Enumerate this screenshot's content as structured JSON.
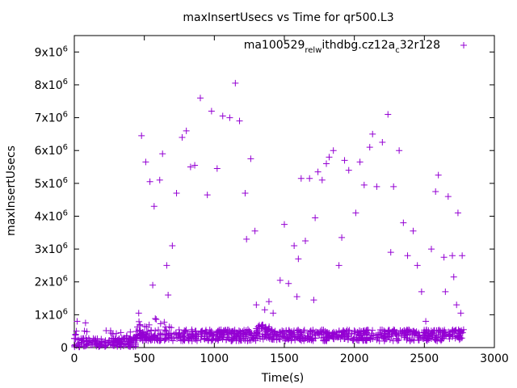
{
  "chart_data": {
    "type": "scatter",
    "title": "maxInsertUsecs vs Time for qr500.L3",
    "xlabel": "Time(s)",
    "ylabel": "maxInsertUsecs",
    "xlim": [
      0,
      3000
    ],
    "ylim": [
      0,
      9500000
    ],
    "x_ticks": [
      0,
      500,
      1000,
      1500,
      2000,
      2500,
      3000
    ],
    "y_ticks": [
      {
        "value": 0,
        "base": "0",
        "exp": ""
      },
      {
        "value": 1000000,
        "base": "1x10",
        "exp": "6"
      },
      {
        "value": 2000000,
        "base": "2x10",
        "exp": "6"
      },
      {
        "value": 3000000,
        "base": "3x10",
        "exp": "6"
      },
      {
        "value": 4000000,
        "base": "4x10",
        "exp": "6"
      },
      {
        "value": 5000000,
        "base": "5x10",
        "exp": "6"
      },
      {
        "value": 6000000,
        "base": "6x10",
        "exp": "6"
      },
      {
        "value": 7000000,
        "base": "7x10",
        "exp": "6"
      },
      {
        "value": 8000000,
        "base": "8x10",
        "exp": "6"
      },
      {
        "value": 9000000,
        "base": "9x10",
        "exp": "6"
      }
    ],
    "grid": false,
    "legend_position": "top-right",
    "series": [
      {
        "name": "ma100529_rel_withdbg.cz12a_c32r128",
        "name_parts": [
          {
            "text": "ma100529",
            "sub": ""
          },
          {
            "text": "",
            "sub": "rel"
          },
          {
            "text": "",
            "sub": "w"
          },
          {
            "text": "ithdbg.cz12a",
            "sub": ""
          },
          {
            "text": "",
            "sub": "c"
          },
          {
            "text": "32r128",
            "sub": ""
          }
        ],
        "color": "#9400d3",
        "marker": "plus",
        "outliers": [
          [
            15,
            500000
          ],
          [
            20,
            800000
          ],
          [
            80,
            750000
          ],
          [
            460,
            1050000
          ],
          [
            480,
            6450000
          ],
          [
            510,
            5650000
          ],
          [
            540,
            5050000
          ],
          [
            560,
            1900000
          ],
          [
            570,
            4300000
          ],
          [
            610,
            5100000
          ],
          [
            630,
            5900000
          ],
          [
            660,
            2500000
          ],
          [
            670,
            1600000
          ],
          [
            700,
            3100000
          ],
          [
            730,
            4700000
          ],
          [
            770,
            6400000
          ],
          [
            800,
            6600000
          ],
          [
            830,
            5500000
          ],
          [
            860,
            5550000
          ],
          [
            900,
            7600000
          ],
          [
            950,
            4650000
          ],
          [
            980,
            7200000
          ],
          [
            1020,
            5450000
          ],
          [
            1060,
            7050000
          ],
          [
            1110,
            7000000
          ],
          [
            1150,
            8050000
          ],
          [
            1180,
            6900000
          ],
          [
            1220,
            4700000
          ],
          [
            1230,
            3300000
          ],
          [
            1260,
            5750000
          ],
          [
            1290,
            3550000
          ],
          [
            1300,
            1300000
          ],
          [
            1360,
            1150000
          ],
          [
            1390,
            1400000
          ],
          [
            1420,
            1050000
          ],
          [
            1470,
            2050000
          ],
          [
            1500,
            3750000
          ],
          [
            1530,
            1950000
          ],
          [
            1570,
            3100000
          ],
          [
            1590,
            1550000
          ],
          [
            1600,
            2700000
          ],
          [
            1620,
            5150000
          ],
          [
            1650,
            3250000
          ],
          [
            1680,
            5150000
          ],
          [
            1710,
            1450000
          ],
          [
            1720,
            3950000
          ],
          [
            1740,
            5350000
          ],
          [
            1770,
            5100000
          ],
          [
            1800,
            5600000
          ],
          [
            1820,
            5800000
          ],
          [
            1850,
            6000000
          ],
          [
            1890,
            2500000
          ],
          [
            1910,
            3350000
          ],
          [
            1930,
            5700000
          ],
          [
            1960,
            5400000
          ],
          [
            2010,
            4100000
          ],
          [
            2040,
            5650000
          ],
          [
            2070,
            4950000
          ],
          [
            2110,
            6100000
          ],
          [
            2130,
            6500000
          ],
          [
            2160,
            4900000
          ],
          [
            2200,
            6250000
          ],
          [
            2240,
            7100000
          ],
          [
            2260,
            2900000
          ],
          [
            2280,
            4900000
          ],
          [
            2320,
            6000000
          ],
          [
            2350,
            3800000
          ],
          [
            2380,
            2800000
          ],
          [
            2420,
            3550000
          ],
          [
            2450,
            2500000
          ],
          [
            2480,
            1700000
          ],
          [
            2510,
            800000
          ],
          [
            2550,
            3000000
          ],
          [
            2580,
            4750000
          ],
          [
            2600,
            5250000
          ],
          [
            2640,
            2750000
          ],
          [
            2650,
            1700000
          ],
          [
            2670,
            4600000
          ],
          [
            2700,
            2800000
          ],
          [
            2710,
            2150000
          ],
          [
            2730,
            1300000
          ],
          [
            2740,
            4100000
          ],
          [
            2760,
            1050000
          ],
          [
            2770,
            2800000
          ]
        ],
        "bands": [
          {
            "x_start": 0,
            "x_end": 440,
            "y_min": 20000,
            "y_max": 300000,
            "count": 160
          },
          {
            "x_start": 440,
            "x_end": 1300,
            "y_min": 200000,
            "y_max": 550000,
            "count": 320
          },
          {
            "x_start": 1300,
            "x_end": 1400,
            "y_min": 250000,
            "y_max": 700000,
            "count": 50
          },
          {
            "x_start": 1400,
            "x_end": 2780,
            "y_min": 200000,
            "y_max": 550000,
            "count": 480
          },
          {
            "x_start": 440,
            "x_end": 700,
            "y_min": 600000,
            "y_max": 900000,
            "count": 14
          },
          {
            "x_start": 0,
            "x_end": 440,
            "y_min": 300000,
            "y_max": 550000,
            "count": 14
          }
        ]
      }
    ]
  }
}
